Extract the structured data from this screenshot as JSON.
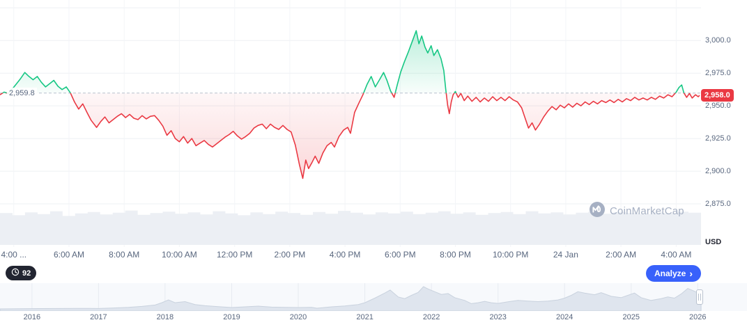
{
  "chart": {
    "baseline_label": "2,959.8",
    "last_price_label": "2,958.0"
  },
  "price_axis": {
    "unit": "USD",
    "ticks": [
      {
        "label": "3,000.0",
        "value": 3000
      },
      {
        "label": "2,975.0",
        "value": 2975
      },
      {
        "label": "2,950.0",
        "value": 2950
      },
      {
        "label": "2,925.0",
        "value": 2925
      },
      {
        "label": "2,900.0",
        "value": 2900
      },
      {
        "label": "2,875.0",
        "value": 2875
      }
    ]
  },
  "time_axis": {
    "ticks": [
      {
        "label": "4:00 ...",
        "hour": 4
      },
      {
        "label": "6:00 AM",
        "hour": 6
      },
      {
        "label": "8:00 AM",
        "hour": 8
      },
      {
        "label": "10:00 AM",
        "hour": 10
      },
      {
        "label": "12:00 PM",
        "hour": 12
      },
      {
        "label": "2:00 PM",
        "hour": 14
      },
      {
        "label": "4:00 PM",
        "hour": 16
      },
      {
        "label": "6:00 PM",
        "hour": 18
      },
      {
        "label": "8:00 PM",
        "hour": 20
      },
      {
        "label": "10:00 PM",
        "hour": 22
      },
      {
        "label": "24 Jan",
        "hour": 24
      },
      {
        "label": "2:00 AM",
        "hour": 26
      },
      {
        "label": "4:00 AM",
        "hour": 28
      }
    ]
  },
  "toolbar": {
    "history_count": "92",
    "analyze_label": "Analyze",
    "analyze_chevron": "›"
  },
  "watermark": {
    "text": "CoinMarketCap"
  },
  "navigator": {
    "years": [
      "2016",
      "2017",
      "2018",
      "2019",
      "2020",
      "2021",
      "2022",
      "2023",
      "2024",
      "2025",
      "2026"
    ]
  },
  "colors": {
    "up": "#16c784",
    "down": "#ea3943",
    "accent_blue": "#3861fb",
    "badge_dark": "#222531",
    "axis_text": "#58667e"
  },
  "chart_data": {
    "type": "line",
    "title": "",
    "xlabel": "",
    "ylabel": "USD",
    "baseline": 2959.8,
    "last_price": 2958.0,
    "x_domain_hours": [
      3.5,
      28.9
    ],
    "ylim": [
      2842,
      3031
    ],
    "y_grid": [
      3025,
      3000,
      2975,
      2950,
      2925,
      2900,
      2875
    ],
    "y_ticks": [
      3000,
      2975,
      2950,
      2925,
      2900,
      2875
    ],
    "x_tick_hours": [
      4,
      6,
      8,
      10,
      12,
      14,
      16,
      18,
      20,
      22,
      24,
      26,
      28
    ],
    "points": [
      [
        3.5,
        2958.5
      ],
      [
        3.65,
        2960.5
      ],
      [
        3.8,
        2959.5
      ],
      [
        3.95,
        2963
      ],
      [
        4.1,
        2967
      ],
      [
        4.25,
        2971
      ],
      [
        4.4,
        2975.5
      ],
      [
        4.55,
        2972.5
      ],
      [
        4.7,
        2970
      ],
      [
        4.85,
        2972.5
      ],
      [
        5.0,
        2968
      ],
      [
        5.15,
        2964.5
      ],
      [
        5.3,
        2967
      ],
      [
        5.45,
        2969.5
      ],
      [
        5.6,
        2965
      ],
      [
        5.75,
        2962.5
      ],
      [
        5.9,
        2964.5
      ],
      [
        6.05,
        2960
      ],
      [
        6.2,
        2953
      ],
      [
        6.35,
        2947.5
      ],
      [
        6.5,
        2951.5
      ],
      [
        6.65,
        2945
      ],
      [
        6.8,
        2939
      ],
      [
        7.0,
        2933.5
      ],
      [
        7.15,
        2938
      ],
      [
        7.3,
        2941.5
      ],
      [
        7.45,
        2937
      ],
      [
        7.6,
        2939.5
      ],
      [
        7.75,
        2942
      ],
      [
        7.9,
        2944
      ],
      [
        8.05,
        2941
      ],
      [
        8.2,
        2943.5
      ],
      [
        8.35,
        2940.5
      ],
      [
        8.5,
        2939.5
      ],
      [
        8.65,
        2942.5
      ],
      [
        8.8,
        2940
      ],
      [
        8.95,
        2942
      ],
      [
        9.1,
        2942.5
      ],
      [
        9.25,
        2939
      ],
      [
        9.4,
        2934.5
      ],
      [
        9.55,
        2927.5
      ],
      [
        9.7,
        2931
      ],
      [
        9.85,
        2925
      ],
      [
        10.0,
        2922.5
      ],
      [
        10.15,
        2926.5
      ],
      [
        10.3,
        2921.5
      ],
      [
        10.45,
        2925
      ],
      [
        10.6,
        2919.5
      ],
      [
        10.75,
        2921.5
      ],
      [
        10.9,
        2923.5
      ],
      [
        11.05,
        2920.5
      ],
      [
        11.2,
        2918.5
      ],
      [
        11.35,
        2921
      ],
      [
        11.5,
        2923.5
      ],
      [
        11.65,
        2926
      ],
      [
        11.8,
        2928
      ],
      [
        11.95,
        2930.5
      ],
      [
        12.1,
        2927
      ],
      [
        12.25,
        2924.5
      ],
      [
        12.4,
        2926.5
      ],
      [
        12.55,
        2929
      ],
      [
        12.7,
        2933
      ],
      [
        12.85,
        2935
      ],
      [
        13.0,
        2936
      ],
      [
        13.15,
        2932.5
      ],
      [
        13.3,
        2936
      ],
      [
        13.45,
        2933.5
      ],
      [
        13.6,
        2932
      ],
      [
        13.75,
        2935
      ],
      [
        13.9,
        2932
      ],
      [
        14.05,
        2930
      ],
      [
        14.2,
        2920
      ],
      [
        14.35,
        2905
      ],
      [
        14.47,
        2894.5
      ],
      [
        14.58,
        2908.5
      ],
      [
        14.68,
        2902
      ],
      [
        14.8,
        2906.5
      ],
      [
        14.92,
        2911.5
      ],
      [
        15.05,
        2906
      ],
      [
        15.2,
        2914
      ],
      [
        15.35,
        2919.5
      ],
      [
        15.5,
        2922
      ],
      [
        15.62,
        2918.5
      ],
      [
        15.78,
        2926.5
      ],
      [
        15.95,
        2931.5
      ],
      [
        16.1,
        2933.5
      ],
      [
        16.2,
        2929
      ],
      [
        16.35,
        2945
      ],
      [
        16.5,
        2952
      ],
      [
        16.65,
        2958.5
      ],
      [
        16.8,
        2966.5
      ],
      [
        16.95,
        2972.5
      ],
      [
        17.1,
        2964.5
      ],
      [
        17.25,
        2970
      ],
      [
        17.4,
        2975.5
      ],
      [
        17.52,
        2969.5
      ],
      [
        17.65,
        2961.5
      ],
      [
        17.78,
        2956.5
      ],
      [
        17.9,
        2966.5
      ],
      [
        18.02,
        2976
      ],
      [
        18.15,
        2983.5
      ],
      [
        18.3,
        2991.5
      ],
      [
        18.45,
        3000
      ],
      [
        18.58,
        3007.5
      ],
      [
        18.68,
        2997.5
      ],
      [
        18.78,
        3003.5
      ],
      [
        18.9,
        2995
      ],
      [
        19.0,
        2990.5
      ],
      [
        19.12,
        2996
      ],
      [
        19.22,
        2988.5
      ],
      [
        19.35,
        2993
      ],
      [
        19.48,
        2986
      ],
      [
        19.58,
        2977
      ],
      [
        19.65,
        2963
      ],
      [
        19.72,
        2950.5
      ],
      [
        19.78,
        2944
      ],
      [
        19.85,
        2953
      ],
      [
        19.92,
        2958.5
      ],
      [
        20.0,
        2961
      ],
      [
        20.1,
        2956.5
      ],
      [
        20.2,
        2959.5
      ],
      [
        20.32,
        2954
      ],
      [
        20.45,
        2957.5
      ],
      [
        20.6,
        2953.5
      ],
      [
        20.75,
        2956.5
      ],
      [
        20.9,
        2953
      ],
      [
        21.05,
        2956
      ],
      [
        21.2,
        2953.5
      ],
      [
        21.35,
        2957
      ],
      [
        21.5,
        2954
      ],
      [
        21.65,
        2956.5
      ],
      [
        21.8,
        2954
      ],
      [
        21.95,
        2957
      ],
      [
        22.1,
        2954.5
      ],
      [
        22.25,
        2953
      ],
      [
        22.4,
        2948.5
      ],
      [
        22.52,
        2941
      ],
      [
        22.65,
        2933
      ],
      [
        22.78,
        2937
      ],
      [
        22.9,
        2931.5
      ],
      [
        23.05,
        2936
      ],
      [
        23.2,
        2941.5
      ],
      [
        23.35,
        2946
      ],
      [
        23.5,
        2949.5
      ],
      [
        23.65,
        2947
      ],
      [
        23.8,
        2950.5
      ],
      [
        23.95,
        2948.5
      ],
      [
        24.1,
        2951.5
      ],
      [
        24.25,
        2949
      ],
      [
        24.4,
        2952
      ],
      [
        24.55,
        2950
      ],
      [
        24.7,
        2953
      ],
      [
        24.85,
        2951
      ],
      [
        25.0,
        2953.5
      ],
      [
        25.15,
        2951.5
      ],
      [
        25.3,
        2954
      ],
      [
        25.45,
        2952.5
      ],
      [
        25.6,
        2954.5
      ],
      [
        25.75,
        2952.5
      ],
      [
        25.9,
        2955
      ],
      [
        26.05,
        2953
      ],
      [
        26.2,
        2955.5
      ],
      [
        26.35,
        2954
      ],
      [
        26.5,
        2956.5
      ],
      [
        26.65,
        2954.5
      ],
      [
        26.8,
        2956
      ],
      [
        26.95,
        2954.5
      ],
      [
        27.1,
        2956.5
      ],
      [
        27.25,
        2955
      ],
      [
        27.4,
        2957.5
      ],
      [
        27.55,
        2956
      ],
      [
        27.7,
        2958.5
      ],
      [
        27.85,
        2957
      ],
      [
        28.0,
        2960.5
      ],
      [
        28.1,
        2964
      ],
      [
        28.2,
        2966
      ],
      [
        28.28,
        2960
      ],
      [
        28.38,
        2956.5
      ],
      [
        28.48,
        2959.5
      ],
      [
        28.58,
        2956
      ],
      [
        28.7,
        2958.5
      ],
      [
        28.8,
        2957
      ],
      [
        28.85,
        2958
      ]
    ],
    "volume_profile": [
      0.88,
      0.82,
      0.9,
      0.85,
      0.93,
      0.8,
      0.87,
      0.91,
      0.84,
      0.89,
      0.95,
      0.83,
      0.88,
      0.92,
      0.86,
      0.9,
      0.84,
      0.93,
      0.87,
      0.82,
      0.9,
      0.85,
      0.92,
      0.88,
      0.83,
      0.91,
      0.86,
      0.94,
      0.89,
      0.84,
      0.9,
      0.87,
      0.92,
      0.85,
      0.89,
      0.93,
      0.86,
      0.9,
      0.83,
      0.88,
      0.91,
      0.85,
      0.93,
      0.87,
      0.9,
      0.84,
      0.89,
      0.92,
      0.86,
      0.91,
      0.88,
      0.85,
      0.9,
      0.87,
      0.92,
      0.89
    ],
    "navigator": {
      "x_domain_years": [
        2015.52,
        2026.74
      ],
      "points": [
        [
          2015.52,
          0.03
        ],
        [
          2015.8,
          0.035
        ],
        [
          2016.1,
          0.045
        ],
        [
          2016.4,
          0.05
        ],
        [
          2016.7,
          0.055
        ],
        [
          2017.0,
          0.05
        ],
        [
          2017.2,
          0.07
        ],
        [
          2017.45,
          0.1
        ],
        [
          2017.65,
          0.14
        ],
        [
          2017.85,
          0.2
        ],
        [
          2017.95,
          0.3
        ],
        [
          2018.05,
          0.42
        ],
        [
          2018.15,
          0.3
        ],
        [
          2018.3,
          0.35
        ],
        [
          2018.45,
          0.22
        ],
        [
          2018.6,
          0.17
        ],
        [
          2018.8,
          0.13
        ],
        [
          2019.0,
          0.09
        ],
        [
          2019.2,
          0.12
        ],
        [
          2019.4,
          0.15
        ],
        [
          2019.6,
          0.11
        ],
        [
          2019.8,
          0.1
        ],
        [
          2020.0,
          0.09
        ],
        [
          2020.2,
          0.1
        ],
        [
          2020.28,
          0.06
        ],
        [
          2020.5,
          0.12
        ],
        [
          2020.7,
          0.16
        ],
        [
          2020.9,
          0.22
        ],
        [
          2021.0,
          0.3
        ],
        [
          2021.15,
          0.5
        ],
        [
          2021.3,
          0.72
        ],
        [
          2021.38,
          0.85
        ],
        [
          2021.5,
          0.55
        ],
        [
          2021.6,
          0.48
        ],
        [
          2021.7,
          0.62
        ],
        [
          2021.8,
          0.75
        ],
        [
          2021.88,
          1.0
        ],
        [
          2021.95,
          0.9
        ],
        [
          2022.05,
          0.78
        ],
        [
          2022.15,
          0.66
        ],
        [
          2022.25,
          0.7
        ],
        [
          2022.35,
          0.52
        ],
        [
          2022.5,
          0.4
        ],
        [
          2022.6,
          0.26
        ],
        [
          2022.7,
          0.3
        ],
        [
          2022.8,
          0.36
        ],
        [
          2022.9,
          0.3
        ],
        [
          2023.0,
          0.27
        ],
        [
          2023.15,
          0.34
        ],
        [
          2023.3,
          0.4
        ],
        [
          2023.45,
          0.37
        ],
        [
          2023.6,
          0.35
        ],
        [
          2023.75,
          0.37
        ],
        [
          2023.9,
          0.42
        ],
        [
          2024.0,
          0.5
        ],
        [
          2024.1,
          0.62
        ],
        [
          2024.2,
          0.78
        ],
        [
          2024.3,
          0.72
        ],
        [
          2024.45,
          0.65
        ],
        [
          2024.55,
          0.74
        ],
        [
          2024.7,
          0.58
        ],
        [
          2024.85,
          0.52
        ],
        [
          2024.95,
          0.62
        ],
        [
          2025.05,
          0.72
        ],
        [
          2025.15,
          0.52
        ],
        [
          2025.3,
          0.4
        ],
        [
          2025.45,
          0.48
        ],
        [
          2025.55,
          0.55
        ],
        [
          2025.65,
          0.5
        ],
        [
          2025.75,
          0.68
        ],
        [
          2025.85,
          0.92
        ],
        [
          2025.95,
          0.8
        ],
        [
          2026.05,
          0.65
        ]
      ]
    }
  }
}
